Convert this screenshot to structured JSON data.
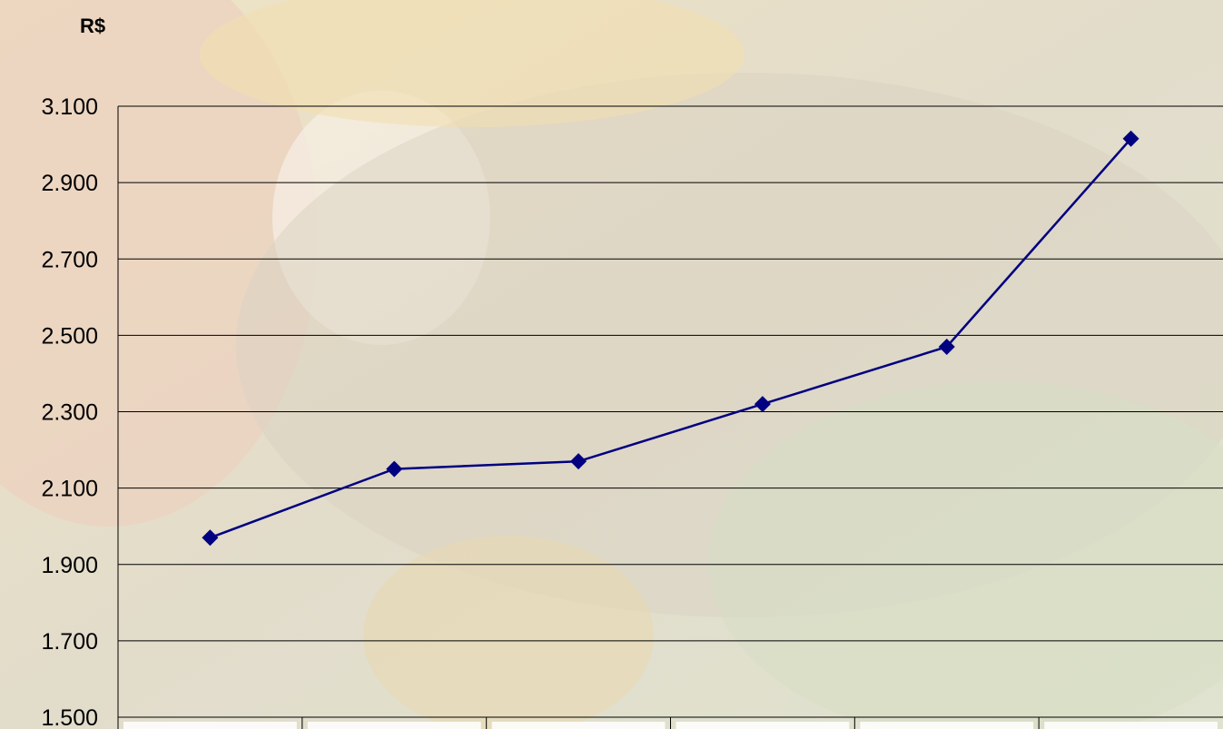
{
  "chart_data": {
    "type": "line",
    "unit_label": "R$",
    "title": "",
    "xlabel": "",
    "ylabel": "R$",
    "ylim": [
      1500,
      3100
    ],
    "yticks": [
      1500,
      1700,
      1900,
      2100,
      2300,
      2500,
      2700,
      2900,
      3100
    ],
    "ytick_labels": [
      "1.500",
      "1.700",
      "1.900",
      "2.100",
      "2.300",
      "2.500",
      "2.700",
      "2.900",
      "3.100"
    ],
    "categories": [
      "",
      "",
      "",
      "",
      "",
      ""
    ],
    "series": [
      {
        "values": [
          1970,
          2150,
          2170,
          2320,
          2470,
          3015
        ],
        "color": "#000080",
        "marker": "diamond"
      }
    ],
    "grid": true,
    "legend": "none",
    "category_boxes": true
  }
}
